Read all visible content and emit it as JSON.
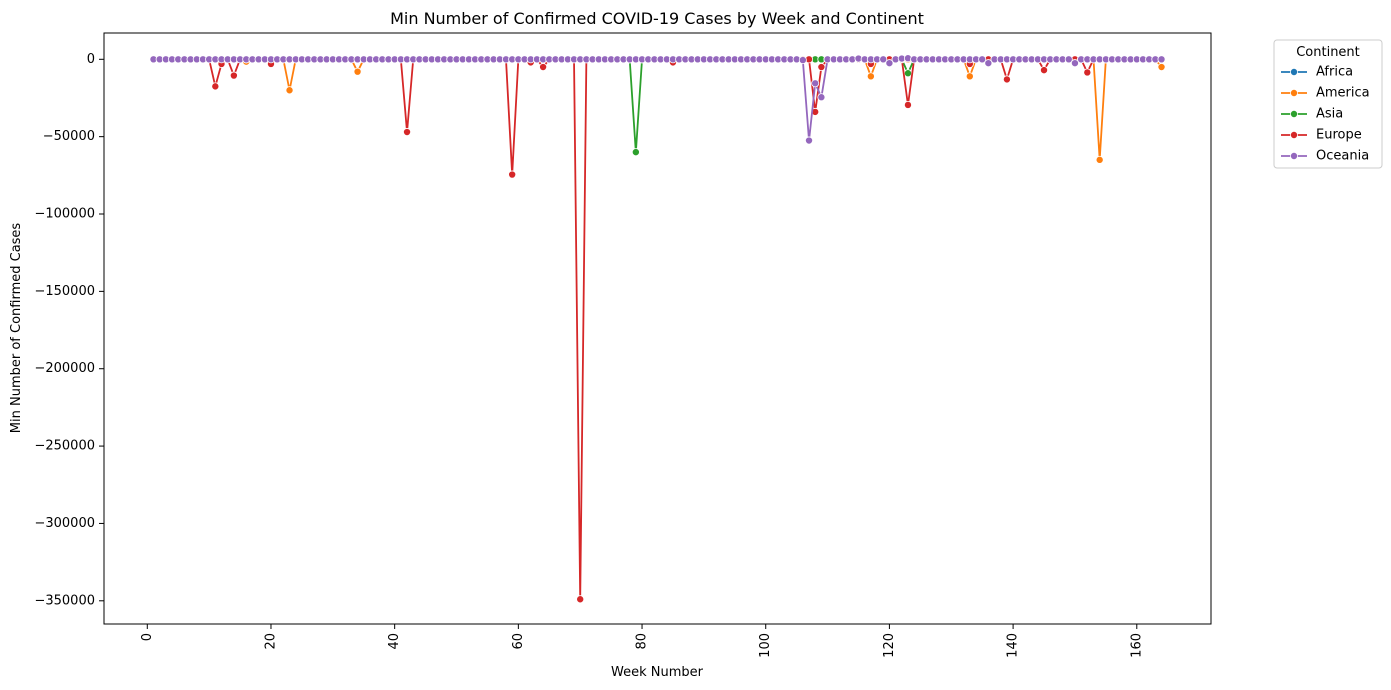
{
  "chart_data": {
    "type": "line",
    "title": "Min Number of Confirmed COVID-19 Cases by Week and Continent",
    "xlabel": "Week Number",
    "ylabel": "Min Number of Confirmed Cases",
    "xlim": [
      -7,
      172
    ],
    "ylim": [
      -365000,
      17000
    ],
    "x_ticks": [
      0,
      20,
      40,
      60,
      80,
      100,
      120,
      140,
      160
    ],
    "y_ticks": [
      0,
      -50000,
      -100000,
      -150000,
      -200000,
      -250000,
      -300000,
      -350000
    ],
    "y_tick_labels": [
      "0",
      "−50000",
      "−100000",
      "−150000",
      "−200000",
      "−250000",
      "−300000",
      "−350000"
    ],
    "weeks_start": 1,
    "weeks_end": 164,
    "grid": false,
    "legend": {
      "title": "Continent",
      "placement": "outside-top-right"
    },
    "series": [
      {
        "name": "Africa",
        "color": "#1f77b4",
        "baseline": 0,
        "points": []
      },
      {
        "name": "America",
        "color": "#ff7f0e",
        "baseline": 0,
        "points": [
          [
            16,
            -1500
          ],
          [
            23,
            -20000
          ],
          [
            34,
            -8000
          ],
          [
            117,
            -11000
          ],
          [
            133,
            -11000
          ],
          [
            154,
            -65000
          ],
          [
            164,
            -5000
          ]
        ]
      },
      {
        "name": "Asia",
        "color": "#2ca02c",
        "baseline": 0,
        "points": [
          [
            79,
            -60000
          ],
          [
            123,
            -9000
          ]
        ]
      },
      {
        "name": "Europe",
        "color": "#d62728",
        "baseline": 0,
        "points": [
          [
            11,
            -17500
          ],
          [
            12,
            -3000
          ],
          [
            14,
            -10500
          ],
          [
            20,
            -3000
          ],
          [
            42,
            -47000
          ],
          [
            59,
            -74500
          ],
          [
            62,
            -2000
          ],
          [
            64,
            -5000
          ],
          [
            70,
            -349000
          ],
          [
            85,
            -2000
          ],
          [
            107,
            0
          ],
          [
            108,
            -34000
          ],
          [
            109,
            -5000
          ],
          [
            117,
            -3000
          ],
          [
            123,
            -29500
          ],
          [
            133,
            -3000
          ],
          [
            139,
            -13000
          ],
          [
            145,
            -7000
          ],
          [
            152,
            -8500
          ]
        ]
      },
      {
        "name": "Oceania",
        "color": "#9467bd",
        "baseline": 0,
        "points": [
          [
            106,
            -500
          ],
          [
            107,
            -52500
          ],
          [
            108,
            -15500
          ],
          [
            109,
            -24500
          ],
          [
            115,
            500
          ],
          [
            120,
            -2500
          ],
          [
            122,
            500
          ],
          [
            123,
            700
          ],
          [
            136,
            -2500
          ],
          [
            150,
            -2500
          ]
        ]
      }
    ]
  }
}
